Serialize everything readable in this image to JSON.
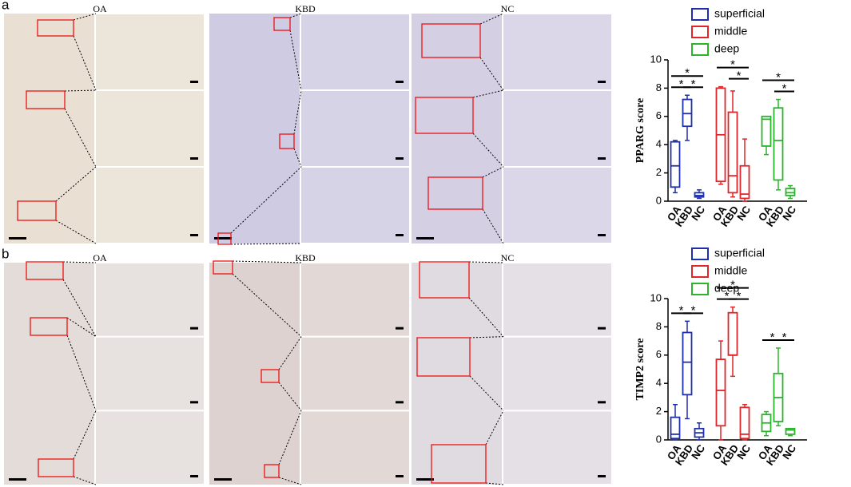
{
  "panels": [
    {
      "label": "a",
      "images": [
        "OA",
        "KBD",
        "NC"
      ]
    },
    {
      "label": "b",
      "images": [
        "OA",
        "KBD",
        "NC"
      ]
    }
  ],
  "chart_data": [
    {
      "type": "box",
      "ylabel": "PPARG score",
      "categories": [
        "OA",
        "KBD",
        "NC"
      ],
      "ylim": [
        0,
        10
      ],
      "yticks": [
        0,
        2,
        4,
        6,
        8,
        10
      ],
      "series": [
        {
          "name": "superficial",
          "color": "#1f2fa8",
          "values": [
            {
              "min": 0.6,
              "q1": 1.0,
              "median": 2.5,
              "q3": 4.2,
              "max": 4.3
            },
            {
              "min": 4.3,
              "q1": 5.3,
              "median": 6.2,
              "q3": 7.2,
              "max": 7.5
            },
            {
              "min": 0.2,
              "q1": 0.3,
              "median": 0.4,
              "q3": 0.6,
              "max": 0.8
            }
          ],
          "significance": [
            {
              "text": "*",
              "pair": [
                "OA",
                "NC"
              ]
            },
            {
              "text": "*",
              "pair": [
                "OA",
                "KBD"
              ]
            },
            {
              "text": "*",
              "pair": [
                "KBD",
                "NC"
              ]
            }
          ]
        },
        {
          "name": "middle",
          "color": "#e0262a",
          "values": [
            {
              "min": 1.2,
              "q1": 1.4,
              "median": 4.7,
              "q3": 8.0,
              "max": 8.1
            },
            {
              "min": 0.3,
              "q1": 0.6,
              "median": 1.8,
              "q3": 6.3,
              "max": 7.8
            },
            {
              "min": 0,
              "q1": 0.2,
              "median": 0.5,
              "q3": 2.5,
              "max": 4.4
            }
          ],
          "significance": [
            {
              "text": "*",
              "pair": [
                "OA",
                "NC"
              ]
            },
            {
              "text": "*",
              "pair": [
                "KBD",
                "NC"
              ]
            }
          ]
        },
        {
          "name": "deep",
          "color": "#2cb52c",
          "values": [
            {
              "min": 3.3,
              "q1": 3.9,
              "median": 5.8,
              "q3": 6.0,
              "max": 6.0
            },
            {
              "min": 0.8,
              "q1": 1.5,
              "median": 4.3,
              "q3": 6.6,
              "max": 7.2
            },
            {
              "min": 0.2,
              "q1": 0.4,
              "median": 0.6,
              "q3": 0.9,
              "max": 1.1
            }
          ],
          "significance": [
            {
              "text": "*",
              "pair": [
                "OA",
                "NC"
              ]
            },
            {
              "text": "*",
              "pair": [
                "KBD",
                "NC"
              ]
            }
          ]
        }
      ]
    },
    {
      "type": "box",
      "ylabel": "TIMP2 score",
      "categories": [
        "OA",
        "KBD",
        "NC"
      ],
      "ylim": [
        0,
        10
      ],
      "yticks": [
        0,
        2,
        4,
        6,
        8,
        10
      ],
      "series": [
        {
          "name": "superficial",
          "color": "#1f2fa8",
          "values": [
            {
              "min": 0,
              "q1": 0.1,
              "median": 0.4,
              "q3": 1.6,
              "max": 2.5
            },
            {
              "min": 1.5,
              "q1": 3.2,
              "median": 5.5,
              "q3": 7.6,
              "max": 8.4
            },
            {
              "min": 0,
              "q1": 0.2,
              "median": 0.5,
              "q3": 0.8,
              "max": 1.2
            }
          ],
          "significance": [
            {
              "text": "*",
              "pair": [
                "OA",
                "KBD"
              ]
            },
            {
              "text": "*",
              "pair": [
                "KBD",
                "NC"
              ]
            }
          ]
        },
        {
          "name": "middle",
          "color": "#e0262a",
          "values": [
            {
              "min": 0,
              "q1": 1.0,
              "median": 3.5,
              "q3": 5.7,
              "max": 7.0
            },
            {
              "min": 4.5,
              "q1": 6.0,
              "median": 6.0,
              "q3": 9.0,
              "max": 9.4
            },
            {
              "min": 0,
              "q1": 0.1,
              "median": 0.4,
              "q3": 2.3,
              "max": 2.5
            }
          ],
          "significance": [
            {
              "text": "*",
              "pair": [
                "OA",
                "NC"
              ]
            },
            {
              "text": "*",
              "pair": [
                "OA",
                "KBD"
              ]
            },
            {
              "text": "*",
              "pair": [
                "KBD",
                "NC"
              ]
            }
          ]
        },
        {
          "name": "deep",
          "color": "#2cb52c",
          "values": [
            {
              "min": 0.3,
              "q1": 0.6,
              "median": 1.2,
              "q3": 1.8,
              "max": 2.0
            },
            {
              "min": 1.0,
              "q1": 1.3,
              "median": 3.0,
              "q3": 4.7,
              "max": 6.5
            },
            {
              "min": 0.3,
              "q1": 0.4,
              "median": 0.7,
              "q3": 0.8,
              "max": 0.8
            }
          ],
          "significance": [
            {
              "text": "*",
              "pair": [
                "OA",
                "KBD"
              ]
            },
            {
              "text": "*",
              "pair": [
                "KBD",
                "NC"
              ]
            }
          ]
        }
      ]
    }
  ]
}
